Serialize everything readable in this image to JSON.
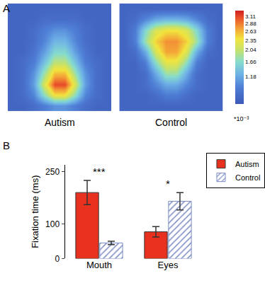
{
  "chart_data": [
    {
      "type": "heatmap",
      "title": "Autism",
      "tick_labels": false,
      "annotations": [
        {
          "text": "A"
        }
      ],
      "cells": [
        [
          0.5,
          0.5,
          0.5,
          0.5,
          0.5,
          0.5,
          0.5,
          0.5,
          0.5,
          0.5
        ],
        [
          0.5,
          0.5,
          0.5,
          0.6,
          0.6,
          0.6,
          0.6,
          0.5,
          0.5,
          0.5
        ],
        [
          0.5,
          0.5,
          0.6,
          0.8,
          1.0,
          1.0,
          0.8,
          0.6,
          0.5,
          0.5
        ],
        [
          0.5,
          0.5,
          0.6,
          0.9,
          1.3,
          1.3,
          0.9,
          0.6,
          0.5,
          0.5
        ],
        [
          0.5,
          0.5,
          0.7,
          1.1,
          1.6,
          1.6,
          1.1,
          0.7,
          0.5,
          0.5
        ],
        [
          0.5,
          0.6,
          0.8,
          1.4,
          2.0,
          2.0,
          1.4,
          0.8,
          0.6,
          0.5
        ],
        [
          0.5,
          0.6,
          1.0,
          1.8,
          2.6,
          2.6,
          1.8,
          1.0,
          0.6,
          0.5
        ],
        [
          0.5,
          0.6,
          1.1,
          2.2,
          3.1,
          3.1,
          2.2,
          1.1,
          0.6,
          0.5
        ],
        [
          0.5,
          0.6,
          0.9,
          1.7,
          2.4,
          2.4,
          1.7,
          0.9,
          0.6,
          0.5
        ],
        [
          0.5,
          0.5,
          0.6,
          0.8,
          1.0,
          1.0,
          0.8,
          0.6,
          0.5,
          0.5
        ]
      ]
    },
    {
      "type": "heatmap",
      "title": "Control",
      "tick_labels": false,
      "cells": [
        [
          0.5,
          0.5,
          0.5,
          0.5,
          0.5,
          0.5,
          0.5,
          0.5,
          0.5,
          0.5
        ],
        [
          0.5,
          0.6,
          0.9,
          1.2,
          1.3,
          1.3,
          1.2,
          0.9,
          0.6,
          0.5
        ],
        [
          0.5,
          0.8,
          1.6,
          2.2,
          2.4,
          2.4,
          2.2,
          1.6,
          0.8,
          0.5
        ],
        [
          0.5,
          0.8,
          1.8,
          2.5,
          2.8,
          2.8,
          2.5,
          1.8,
          0.8,
          0.5
        ],
        [
          0.5,
          0.6,
          1.2,
          2.2,
          2.7,
          2.7,
          2.2,
          1.2,
          0.6,
          0.5
        ],
        [
          0.5,
          0.5,
          0.8,
          1.7,
          2.3,
          2.3,
          1.7,
          0.8,
          0.5,
          0.5
        ],
        [
          0.5,
          0.5,
          0.6,
          1.2,
          1.8,
          1.8,
          1.2,
          0.6,
          0.5,
          0.5
        ],
        [
          0.5,
          0.5,
          0.6,
          0.9,
          1.2,
          1.2,
          0.9,
          0.6,
          0.5,
          0.5
        ],
        [
          0.5,
          0.5,
          0.5,
          0.6,
          0.8,
          0.8,
          0.6,
          0.5,
          0.5,
          0.5
        ],
        [
          0.5,
          0.5,
          0.5,
          0.5,
          0.5,
          0.5,
          0.5,
          0.5,
          0.5,
          0.5
        ]
      ],
      "colorbar": {
        "range": [
          0.3,
          3.3
        ],
        "ticks": [
          1.18,
          1.66,
          2.04,
          2.35,
          2.63,
          2.88,
          3.11
        ],
        "label": "*10⁻³"
      }
    },
    {
      "type": "bar",
      "y_label": "Fixation time (ms)",
      "categories": [
        "Mouth",
        "Eyes"
      ],
      "series": [
        {
          "name": "Autism",
          "color": "#e8311e",
          "values": [
            190,
            77
          ],
          "errors": [
            35,
            15
          ]
        },
        {
          "name": "Control",
          "color": "#7b8cc4",
          "marker": "hatch",
          "values": [
            45,
            165
          ],
          "errors": [
            5,
            25
          ]
        }
      ],
      "ylim": [
        0,
        270
      ],
      "yticks": [
        0,
        100,
        250
      ],
      "grid": false,
      "legend": "upper right",
      "annotations": [
        {
          "text": "B"
        },
        {
          "text": "***",
          "category": "Mouth"
        },
        {
          "text": "*",
          "category": "Eyes"
        }
      ]
    }
  ]
}
